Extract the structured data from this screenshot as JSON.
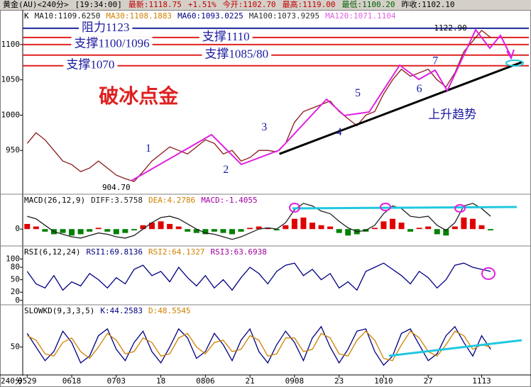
{
  "header": {
    "items": [
      {
        "text": "黄金(AU)<240分>",
        "color": "#000000"
      },
      {
        "text": "[19:34:00]",
        "color": "#000000"
      },
      {
        "text": "最新:1118.75",
        "color": "#c00000"
      },
      {
        "text": "+1.51%",
        "color": "#c00000"
      },
      {
        "text": "今开:1102.70",
        "color": "#c00000"
      },
      {
        "text": "最高:1119.00",
        "color": "#c00000"
      },
      {
        "text": "最低:1100.20",
        "color": "#006000"
      },
      {
        "text": "昨收:1102.10",
        "color": "#000000"
      }
    ]
  },
  "chart_data": [
    {
      "type": "line",
      "legend": [
        {
          "text": "K",
          "color": "#000000"
        },
        {
          "text": "MA10:1109.6250",
          "color": "#202020"
        },
        {
          "text": "MA30:1108.1883",
          "color": "#d08000"
        },
        {
          "text": "MA60:1093.0225",
          "color": "#000080"
        },
        {
          "text": "MA100:1073.9295",
          "color": "#303030"
        },
        {
          "text": "MA120:1071.1104",
          "color": "#e060e0"
        }
      ],
      "ylim": [
        890,
        1147
      ],
      "yticks": [
        950,
        1000,
        1050,
        1100
      ],
      "series": [
        {
          "color": "#8b1a1a",
          "values": [
            960,
            975,
            965,
            950,
            935,
            930,
            920,
            925,
            935,
            925,
            915,
            910,
            906,
            920,
            935,
            945,
            955,
            950,
            945,
            955,
            965,
            960,
            945,
            950,
            935,
            940,
            950,
            950,
            948,
            960,
            990,
            1005,
            1010,
            1015,
            1020,
            1005,
            995,
            985,
            1000,
            1005,
            1030,
            1050,
            1065,
            1055,
            1060,
            1065,
            1050,
            1040,
            1060,
            1090,
            1105,
            1120,
            1110,
            null,
            null,
            null
          ]
        }
      ],
      "levels": [
        {
          "label": "阻力1123",
          "value": 1123,
          "at": 8.8,
          "color": "#1a2a9a"
        },
        {
          "label": "支撑1110",
          "value": 1110,
          "at": 22.3,
          "color": "#e02020"
        },
        {
          "label": "支撑1100/1096",
          "value": 1100,
          "at": 9.5,
          "color": "#e02020"
        },
        {
          "label": "支撑1085/80",
          "value": 1085,
          "at": 23.5,
          "color": "#e02020"
        },
        {
          "label": "支撑1070",
          "value": 1070,
          "at": 7.1,
          "color": "#e02020"
        }
      ],
      "trend_line": {
        "x": [
          28.3,
          55.5
        ],
        "y": [
          945,
          1075
        ],
        "color": "#000000"
      },
      "annotations": [
        {
          "text": "1",
          "x": 13.6,
          "y": 952,
          "color": "#1a1aa0",
          "style": "wave"
        },
        {
          "text": "2",
          "x": 22.3,
          "y": 922,
          "color": "#1a1aa0",
          "style": "wave"
        },
        {
          "text": "3",
          "x": 26.6,
          "y": 982,
          "color": "#1a1aa0",
          "style": "wave"
        },
        {
          "text": "4",
          "x": 35,
          "y": 975,
          "color": "#1a1aa0",
          "style": "wave"
        },
        {
          "text": "5",
          "x": 37.1,
          "y": 1030,
          "color": "#1a1aa0",
          "style": "wave"
        },
        {
          "text": "6",
          "x": 44,
          "y": 1036,
          "color": "#1a1aa0",
          "style": "wave"
        },
        {
          "text": "7",
          "x": 45.8,
          "y": 1076,
          "color": "#1a1aa0",
          "style": "wave"
        },
        {
          "text": "904.70",
          "x": 10,
          "y": 897,
          "color": "#000000",
          "style": "price"
        },
        {
          "text": "1122.90",
          "x": 47.5,
          "y": 1123,
          "color": "#000000",
          "style": "price"
        },
        {
          "text": "破冰点金",
          "x": 12.5,
          "y": 1024,
          "color": "#e02020",
          "style": "title"
        },
        {
          "text": "上升趋势",
          "x": 47.7,
          "y": 1000,
          "color": "#1a1aa0",
          "style": "note"
        }
      ]
    },
    {
      "type": "bar",
      "legend": [
        {
          "text": "MACD(26,12,9)",
          "color": "#000000"
        },
        {
          "text": "DIFF:3.5758",
          "color": "#202020"
        },
        {
          "text": "DEA:4.2786",
          "color": "#d08000"
        },
        {
          "text": "MACD:-1.4055",
          "color": "#a000a0"
        }
      ],
      "ylim": [
        -12,
        26
      ],
      "yticks": [
        0
      ],
      "series": [
        {
          "type": "bar",
          "color": "#e00000",
          "negative_color": "#008000",
          "values": [
            4,
            2,
            -2,
            -4,
            -3,
            -5,
            -4,
            -2,
            1,
            -2,
            -4,
            -3,
            -1,
            3,
            5,
            6,
            4,
            2,
            -2,
            -3,
            -4,
            -2,
            -3,
            -4,
            -2,
            1,
            2,
            1,
            -1,
            3,
            8,
            9,
            5,
            3,
            2,
            -3,
            -5,
            -4,
            -2,
            1,
            6,
            8,
            5,
            -2,
            1,
            2,
            -4,
            -5,
            2,
            9,
            8,
            3,
            -1,
            null,
            null,
            null
          ]
        },
        {
          "type": "line",
          "color": "#202020",
          "values": [
            10,
            8,
            3,
            -2,
            -4,
            -6,
            -7,
            -5,
            -3,
            -4,
            -6,
            -7,
            -5,
            0,
            5,
            9,
            10,
            8,
            4,
            0,
            -3,
            -4,
            -6,
            -8,
            -6,
            -3,
            0,
            1,
            0,
            5,
            15,
            20,
            18,
            14,
            12,
            6,
            1,
            -2,
            -1,
            3,
            12,
            18,
            16,
            10,
            9,
            10,
            3,
            -1,
            5,
            18,
            20,
            16,
            10,
            null,
            null,
            null
          ]
        }
      ]
    },
    {
      "type": "line",
      "legend": [
        {
          "text": "RSI(6,12,24)",
          "color": "#000000"
        },
        {
          "text": "RSI1:69.8136",
          "color": "#000080"
        },
        {
          "text": "RSI2:64.1327",
          "color": "#d08000"
        },
        {
          "text": "RSI3:63.6938",
          "color": "#a000a0"
        }
      ],
      "ylim": [
        -7,
        128
      ],
      "yticks": [
        0,
        20,
        50,
        80,
        100
      ],
      "series": [
        {
          "type": "line",
          "color": "#000080",
          "values": [
            70,
            40,
            30,
            60,
            25,
            45,
            35,
            65,
            50,
            30,
            55,
            40,
            75,
            85,
            60,
            70,
            45,
            80,
            55,
            35,
            60,
            30,
            50,
            25,
            55,
            80,
            65,
            40,
            70,
            85,
            90,
            60,
            75,
            50,
            65,
            30,
            45,
            25,
            70,
            80,
            90,
            75,
            60,
            40,
            70,
            55,
            30,
            50,
            85,
            90,
            80,
            75,
            70,
            null,
            null,
            null
          ]
        }
      ]
    },
    {
      "type": "line",
      "legend": [
        {
          "text": "SLOWKD(9,3,3,5)",
          "color": "#000000"
        },
        {
          "text": "K:44.2583",
          "color": "#000080"
        },
        {
          "text": "D:48.5545",
          "color": "#d08000"
        }
      ],
      "ylim": [
        -10,
        140
      ],
      "yticks": [
        50
      ],
      "x_label": "240分",
      "categories": [
        "0529",
        null,
        null,
        null,
        null,
        "0618",
        null,
        null,
        null,
        null,
        "0703",
        null,
        null,
        null,
        null,
        "18",
        null,
        null,
        null,
        null,
        "0806",
        null,
        null,
        null,
        null,
        "21",
        null,
        null,
        null,
        null,
        "0908",
        null,
        null,
        null,
        null,
        "23",
        null,
        null,
        null,
        null,
        "1010",
        null,
        null,
        null,
        null,
        "27",
        null,
        null,
        null,
        null,
        null,
        "1113",
        null,
        null,
        null,
        null
      ],
      "series": [
        {
          "type": "line",
          "color": "#000080",
          "values": [
            80,
            50,
            20,
            40,
            85,
            60,
            15,
            30,
            75,
            90,
            45,
            20,
            60,
            85,
            40,
            15,
            50,
            90,
            70,
            25,
            40,
            80,
            55,
            20,
            65,
            90,
            40,
            15,
            55,
            85,
            60,
            20,
            70,
            95,
            50,
            15,
            45,
            85,
            90,
            40,
            10,
            30,
            80,
            90,
            55,
            20,
            35,
            75,
            95,
            60,
            30,
            75,
            45,
            null,
            null,
            null
          ]
        },
        {
          "type": "line",
          "color": "#d08000",
          "values": [
            75,
            65,
            35,
            30,
            60,
            70,
            40,
            25,
            50,
            80,
            65,
            35,
            40,
            70,
            60,
            30,
            35,
            70,
            80,
            50,
            35,
            60,
            65,
            40,
            45,
            75,
            65,
            30,
            35,
            70,
            70,
            40,
            45,
            80,
            70,
            35,
            30,
            65,
            85,
            65,
            25,
            20,
            55,
            85,
            70,
            40,
            30,
            55,
            85,
            75,
            45,
            55,
            50,
            null,
            null,
            null
          ]
        }
      ]
    }
  ]
}
